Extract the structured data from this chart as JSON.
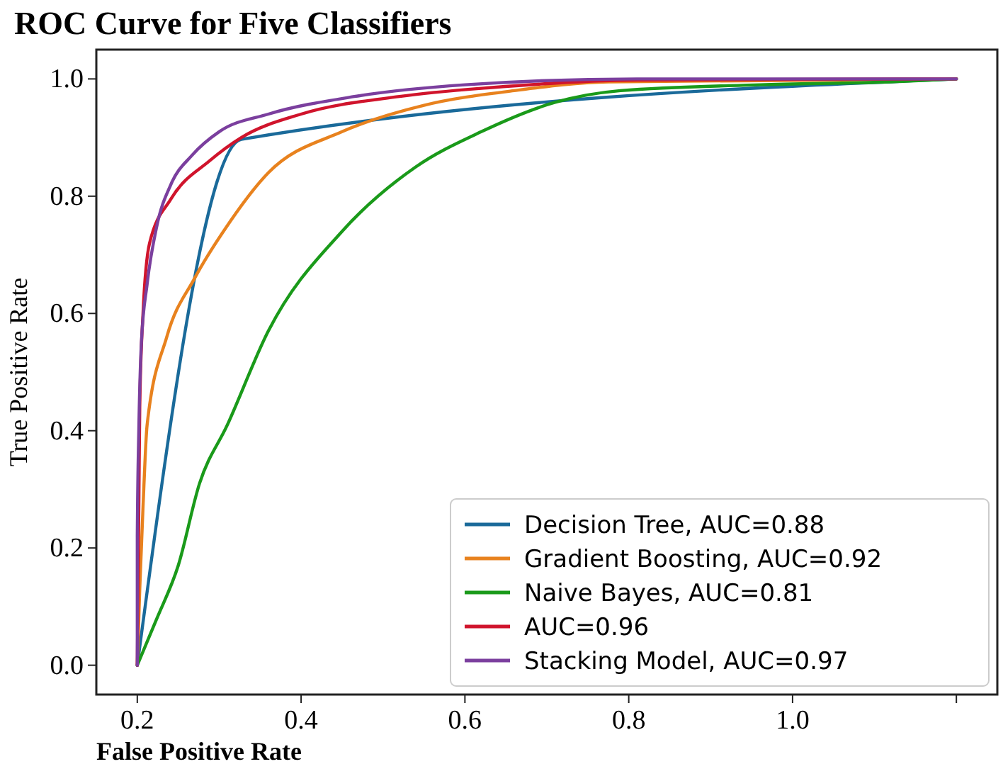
{
  "chart_data": {
    "type": "line",
    "title": "ROC Curve for Five Classifiers",
    "xlabel": "False Positive Rate",
    "ylabel": "True Positive Rate",
    "xlim": [
      0.15,
      1.25
    ],
    "ylim": [
      -0.05,
      1.05
    ],
    "xticks": [
      0.2,
      0.4,
      0.6,
      0.8,
      {
        "value": 1.0,
        "label": "1.0"
      },
      {
        "value": 1.2,
        "label": null
      }
    ],
    "yticks": [
      {
        "value": 0,
        "label": "0.0"
      },
      0.2,
      0.4,
      0.6,
      0.8,
      {
        "value": 1.0,
        "label": "1.0"
      }
    ],
    "legend": "bottom right",
    "grid": false,
    "line_style": "solid",
    "marker": "none",
    "series": [
      {
        "name": "Decision Tree, AUC=0.88",
        "color": "#1a6a9a",
        "x": [
          0.2,
          0.327,
          1.2
        ],
        "values": [
          0,
          0.897,
          1
        ]
      },
      {
        "name": "Gradient Boosting, AUC=0.92",
        "color": "#e8821e",
        "x": [
          0.2,
          0.203,
          0.207,
          0.212,
          0.236,
          0.27,
          0.31,
          0.36,
          0.45,
          0.55,
          0.66,
          0.775,
          1.2
        ],
        "values": [
          0,
          0.13,
          0.27,
          0.41,
          0.56,
          0.66,
          0.75,
          0.84,
          0.91,
          0.955,
          0.98,
          0.995,
          1
        ]
      },
      {
        "name": "Naive Bayes, AUC=0.81",
        "color": "#1a9a1a",
        "x": [
          0.2,
          0.224,
          0.25,
          0.276,
          0.31,
          0.36,
          0.45,
          0.54,
          0.62,
          0.71,
          0.79,
          0.96,
          1.12,
          1.2
        ],
        "values": [
          0,
          0.08,
          0.17,
          0.31,
          0.41,
          0.57,
          0.74,
          0.85,
          0.91,
          0.96,
          0.98,
          0.99,
          0.995,
          1
        ]
      },
      {
        "name": "AUC=0.96",
        "color": "#d0142c",
        "x": [
          0.2,
          0.202,
          0.203,
          0.207,
          0.215,
          0.241,
          0.288,
          0.327,
          0.4,
          0.52,
          0.63,
          0.81,
          1.2
        ],
        "values": [
          0,
          0.29,
          0.44,
          0.6,
          0.72,
          0.795,
          0.86,
          0.9,
          0.94,
          0.97,
          0.985,
          0.998,
          1
        ]
      },
      {
        "name": "Stacking Model, AUC=0.97",
        "color": "#7b3f9e",
        "x": [
          0.2,
          0.2,
          0.202,
          0.205,
          0.212,
          0.224,
          0.241,
          0.267,
          0.3,
          0.36,
          0.465,
          0.6,
          0.81,
          1.2
        ],
        "values": [
          0,
          0.22,
          0.41,
          0.55,
          0.65,
          0.75,
          0.82,
          0.87,
          0.91,
          0.94,
          0.97,
          0.99,
          1,
          1
        ]
      }
    ]
  }
}
